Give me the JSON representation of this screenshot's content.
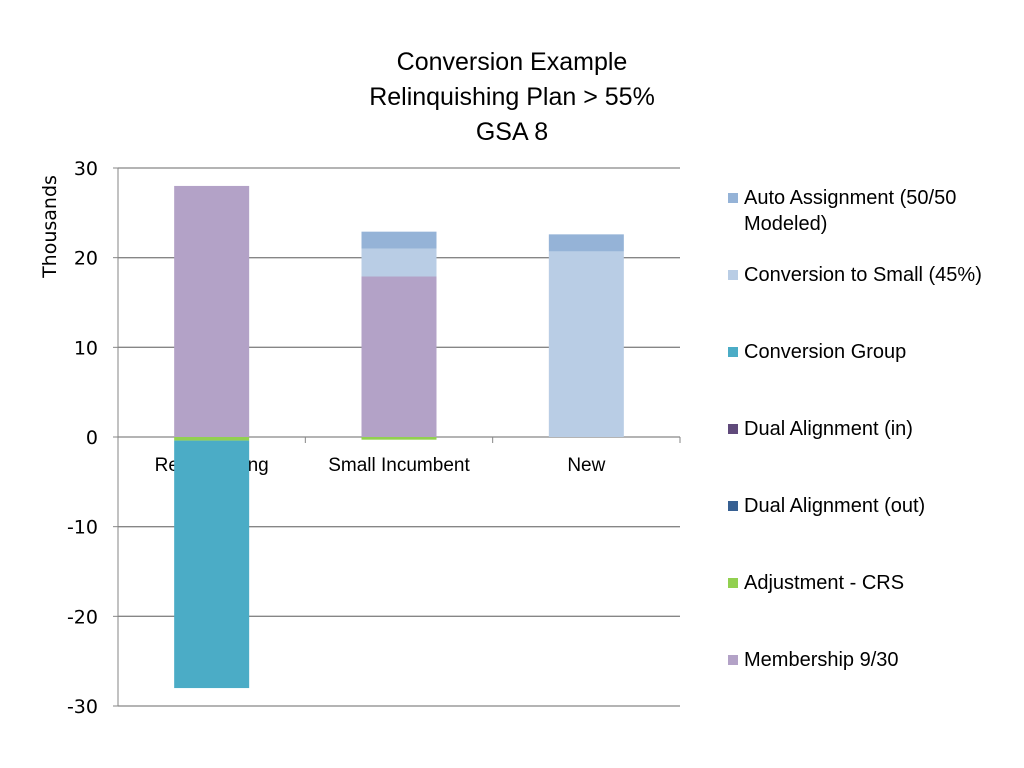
{
  "chart_data": {
    "type": "bar",
    "stacked": true,
    "title": [
      "Conversion Example",
      "Relinquishing Plan > 55%",
      "GSA 8"
    ],
    "ylabel": "Thousands",
    "ylim": [
      -30,
      30
    ],
    "yticks": [
      "30",
      "20",
      "10",
      "0",
      "-10",
      "-20",
      "-30"
    ],
    "grid": true,
    "legend_position": "right",
    "categories": [
      "Relinquishing",
      "Small Incumbent",
      "New"
    ],
    "series": [
      {
        "name": "Membership 9/30",
        "color": "#b3a2c7",
        "values": [
          28.0,
          17.9,
          0
        ]
      },
      {
        "name": "Adjustment - CRS",
        "color": "#92d050",
        "values": [
          -0.4,
          -0.3,
          0
        ]
      },
      {
        "name": "Dual Alignment (out)",
        "color": "#376092",
        "values": [
          0,
          0,
          0
        ]
      },
      {
        "name": "Dual Alignment (in)",
        "color": "#604a7b",
        "values": [
          0,
          0,
          0
        ]
      },
      {
        "name": "Conversion Group",
        "color": "#4bacc6",
        "values": [
          -27.6,
          0,
          0
        ]
      },
      {
        "name": "Conversion to Small (45%)",
        "color": "#b9cde5",
        "values": [
          0,
          3.1,
          20.7
        ]
      },
      {
        "name": "Auto Assignment (50/50 Modeled)",
        "color": "#95b3d7",
        "values": [
          0,
          1.9,
          1.9
        ]
      }
    ]
  }
}
